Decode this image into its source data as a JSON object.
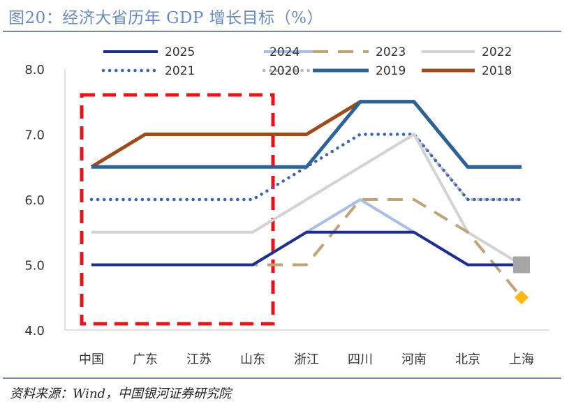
{
  "header": {
    "title": "图20：经济大省历年 GDP 增长目标（%）"
  },
  "footer": {
    "source": "资料来源：Wind，中国银河证券研究院"
  },
  "chart_data": {
    "type": "line",
    "title": "经济大省历年 GDP 增长目标（%）",
    "xlabel": "",
    "ylabel": "",
    "ylim": [
      4.0,
      8.0
    ],
    "yticks": [
      "4.0",
      "5.0",
      "6.0",
      "7.0",
      "8.0"
    ],
    "categories": [
      "中国",
      "广东",
      "江苏",
      "山东",
      "浙江",
      "四川",
      "河南",
      "北京",
      "上海"
    ],
    "legend_position": "top",
    "highlight_box": {
      "from_category": "中国",
      "to_category": "山东",
      "color": "#e8141b",
      "style": "dashed"
    },
    "series": [
      {
        "name": "2025",
        "color": "#1c2f8f",
        "style": "solid",
        "values": [
          5.0,
          5.0,
          5.0,
          5.0,
          5.5,
          5.5,
          5.5,
          5.0,
          5.0
        ]
      },
      {
        "name": "2024",
        "color": "#a9bfe6",
        "style": "solid",
        "values": [
          5.0,
          5.0,
          5.0,
          5.0,
          5.5,
          6.0,
          5.5,
          5.0,
          5.0
        ]
      },
      {
        "name": "2023",
        "color": "#bfa477",
        "style": "dashed",
        "values": [
          5.0,
          5.0,
          5.0,
          5.0,
          5.0,
          6.0,
          6.0,
          5.5,
          4.5
        ]
      },
      {
        "name": "2022",
        "color": "#d3d3d3",
        "style": "solid",
        "values": [
          5.5,
          5.5,
          5.5,
          5.5,
          6.0,
          6.5,
          7.0,
          5.5,
          5.0
        ]
      },
      {
        "name": "2021",
        "color": "#3f64b4",
        "style": "dotted",
        "values": [
          6.0,
          6.0,
          6.0,
          6.0,
          6.5,
          7.0,
          7.0,
          6.0,
          6.0
        ]
      },
      {
        "name": "2020",
        "color": "#b9b9b9",
        "style": "dotted",
        "values": [
          null,
          null,
          null,
          null,
          null,
          null,
          7.0,
          6.0,
          6.0
        ]
      },
      {
        "name": "2019",
        "color": "#2c6396",
        "style": "solid",
        "values": [
          6.5,
          6.5,
          6.5,
          6.5,
          6.5,
          7.5,
          7.5,
          6.5,
          6.5
        ]
      },
      {
        "name": "2018",
        "color": "#9e4b1c",
        "style": "solid",
        "values": [
          6.5,
          7.0,
          7.0,
          7.0,
          7.0,
          7.5,
          7.5,
          6.5,
          6.5
        ]
      }
    ],
    "point_markers": [
      {
        "series": "2023",
        "category": "上海",
        "value": 4.5,
        "shape": "diamond",
        "color": "#fbb814"
      },
      {
        "series": "2022",
        "category": "上海",
        "value": 5.0,
        "shape": "square",
        "color": "#a6a6a6"
      }
    ]
  }
}
